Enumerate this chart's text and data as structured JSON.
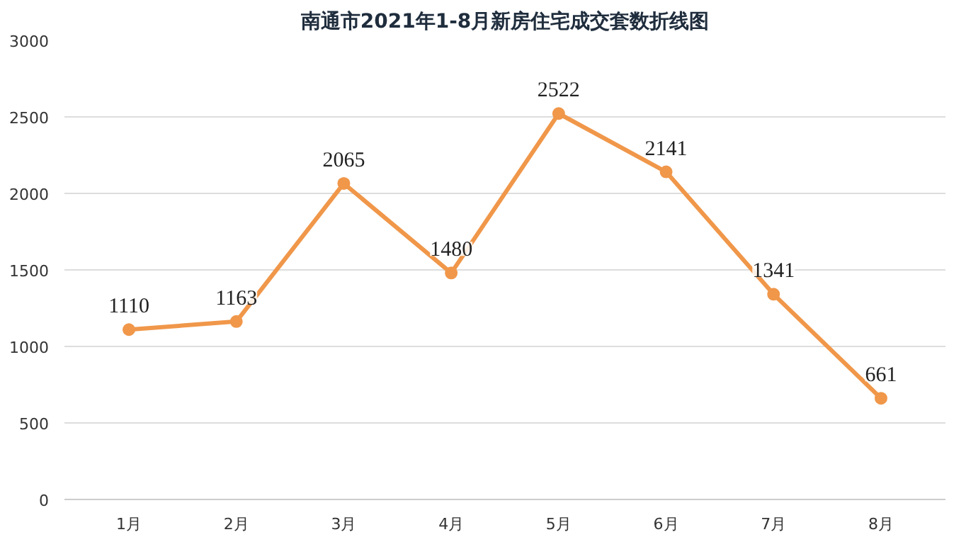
{
  "chart_data": {
    "type": "line",
    "title": "南通市2021年1-8月新房住宅成交套数折线图",
    "categories": [
      "1月",
      "2月",
      "3月",
      "4月",
      "5月",
      "6月",
      "7月",
      "8月"
    ],
    "series": [
      {
        "color": "#f0974a",
        "values": [
          1110,
          1163,
          2065,
          1480,
          2522,
          2141,
          1341,
          661
        ]
      }
    ],
    "ylim": [
      0,
      3000
    ],
    "yticks": [
      0,
      500,
      1000,
      1500,
      2000,
      2500,
      3000
    ],
    "grid": "y",
    "marker": "circle",
    "line_style": "solid",
    "data_labels": true
  }
}
